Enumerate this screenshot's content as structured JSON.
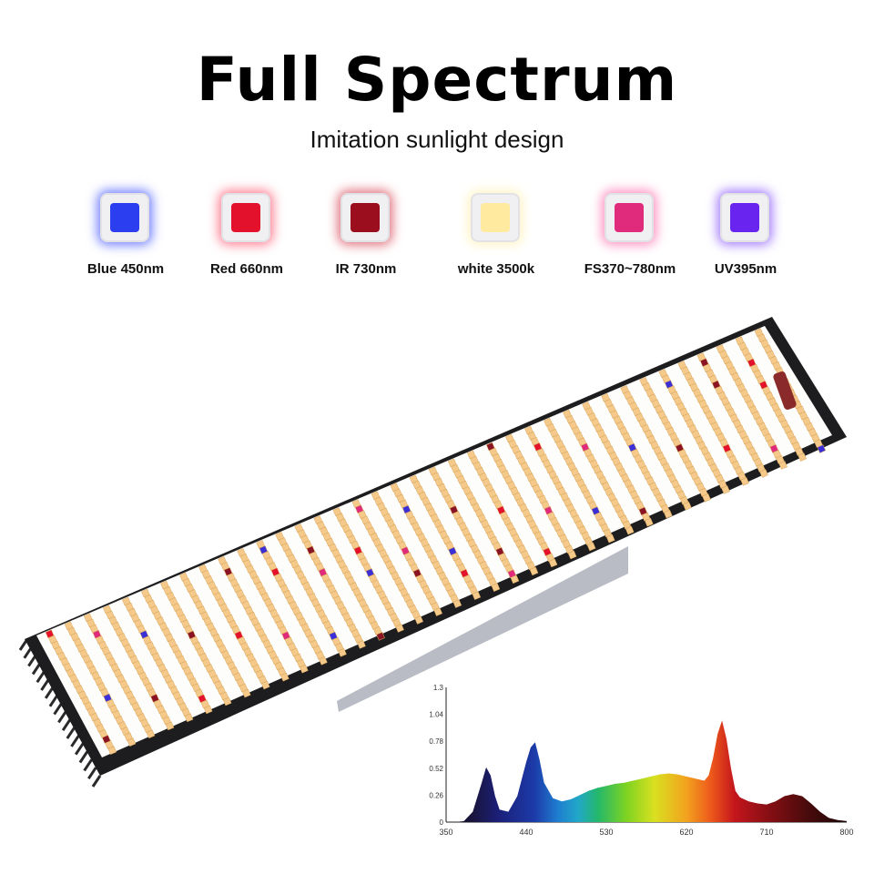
{
  "header": {
    "title": "Full Spectrum",
    "subtitle": "Imitation sunlight design"
  },
  "leds": [
    {
      "label": "Blue 450nm",
      "color": "#2b3ff0",
      "glow": "#6f7dff"
    },
    {
      "label": "Red 660nm",
      "color": "#e4112c",
      "glow": "#ff7f92"
    },
    {
      "label": "IR 730nm",
      "color": "#9b0e1e",
      "glow": "#e0707c"
    },
    {
      "label": "white 3500k",
      "color": "#ffeaa0",
      "glow": "#fff4c4"
    },
    {
      "label": "FS370~780nm",
      "color": "#e02a7c",
      "glow": "#ff8fc0"
    },
    {
      "label": "UV395nm",
      "color": "#6a24f0",
      "glow": "#a37bff"
    }
  ],
  "chart_data": {
    "type": "area",
    "title": "",
    "xlabel": "",
    "ylabel": "",
    "xlim": [
      350,
      800
    ],
    "ylim": [
      0,
      1.3
    ],
    "x_ticks": [
      "350",
      "440",
      "530",
      "620",
      "710",
      "800"
    ],
    "y_ticks": [
      "0",
      "0.26",
      "0.52",
      "0.78",
      "1.04",
      "1.3"
    ],
    "x": [
      350,
      360,
      370,
      380,
      390,
      395,
      400,
      405,
      410,
      420,
      430,
      440,
      445,
      450,
      455,
      460,
      470,
      480,
      490,
      500,
      510,
      520,
      530,
      540,
      550,
      560,
      570,
      580,
      590,
      600,
      610,
      620,
      630,
      640,
      645,
      650,
      655,
      660,
      665,
      670,
      675,
      680,
      690,
      700,
      710,
      720,
      730,
      740,
      750,
      760,
      770,
      780,
      790,
      800
    ],
    "values": [
      0,
      0,
      0.01,
      0.1,
      0.38,
      0.53,
      0.45,
      0.25,
      0.12,
      0.1,
      0.25,
      0.58,
      0.72,
      0.77,
      0.6,
      0.38,
      0.23,
      0.2,
      0.22,
      0.26,
      0.3,
      0.33,
      0.35,
      0.37,
      0.38,
      0.4,
      0.42,
      0.44,
      0.46,
      0.47,
      0.46,
      0.44,
      0.42,
      0.4,
      0.45,
      0.62,
      0.85,
      0.98,
      0.8,
      0.52,
      0.3,
      0.24,
      0.2,
      0.18,
      0.17,
      0.2,
      0.25,
      0.27,
      0.25,
      0.18,
      0.1,
      0.04,
      0.02,
      0.01
    ]
  }
}
